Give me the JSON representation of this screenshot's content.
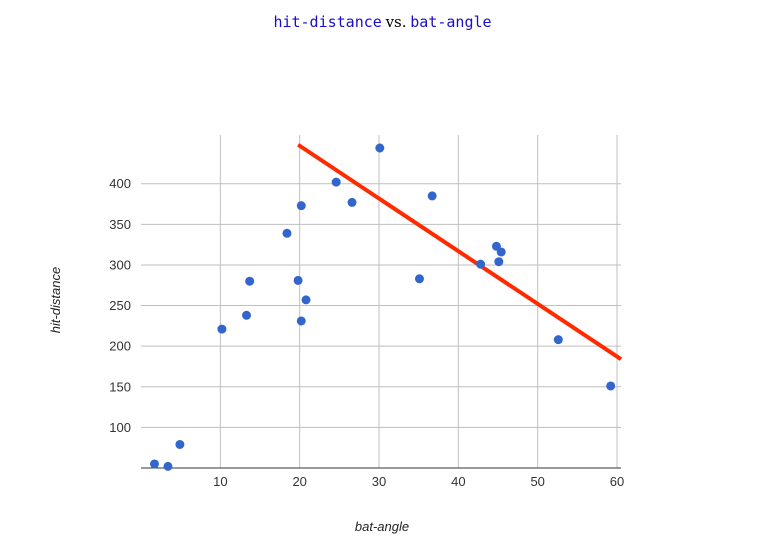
{
  "chart_data": {
    "type": "scatter",
    "title_x": "hit-distance",
    "title_vs": "vs.",
    "title_y": "bat-angle",
    "xlabel": "bat-angle",
    "ylabel": "hit-distance",
    "xlim": [
      0,
      60.5
    ],
    "ylim": [
      50,
      460
    ],
    "xticks": [
      10,
      20,
      30,
      40,
      50,
      60
    ],
    "yticks": [
      100,
      150,
      200,
      250,
      300,
      350,
      400
    ],
    "grid": true,
    "point_color": "#3366cc",
    "trend_color": "#ff2a00",
    "points": [
      [
        1.7,
        55
      ],
      [
        3.4,
        52
      ],
      [
        4.9,
        79
      ],
      [
        10.2,
        221
      ],
      [
        13.3,
        238
      ],
      [
        13.7,
        280
      ],
      [
        18.4,
        339
      ],
      [
        19.8,
        281
      ],
      [
        20.2,
        373
      ],
      [
        20.2,
        231
      ],
      [
        20.8,
        257
      ],
      [
        24.6,
        402
      ],
      [
        26.6,
        377
      ],
      [
        30.1,
        444
      ],
      [
        35.1,
        283
      ],
      [
        36.7,
        385
      ],
      [
        42.8,
        301
      ],
      [
        44.8,
        323
      ],
      [
        45.1,
        304
      ],
      [
        45.4,
        316
      ],
      [
        52.6,
        208
      ],
      [
        59.2,
        151
      ]
    ],
    "trendline": [
      [
        19.8,
        448
      ],
      [
        60.5,
        184
      ]
    ]
  }
}
